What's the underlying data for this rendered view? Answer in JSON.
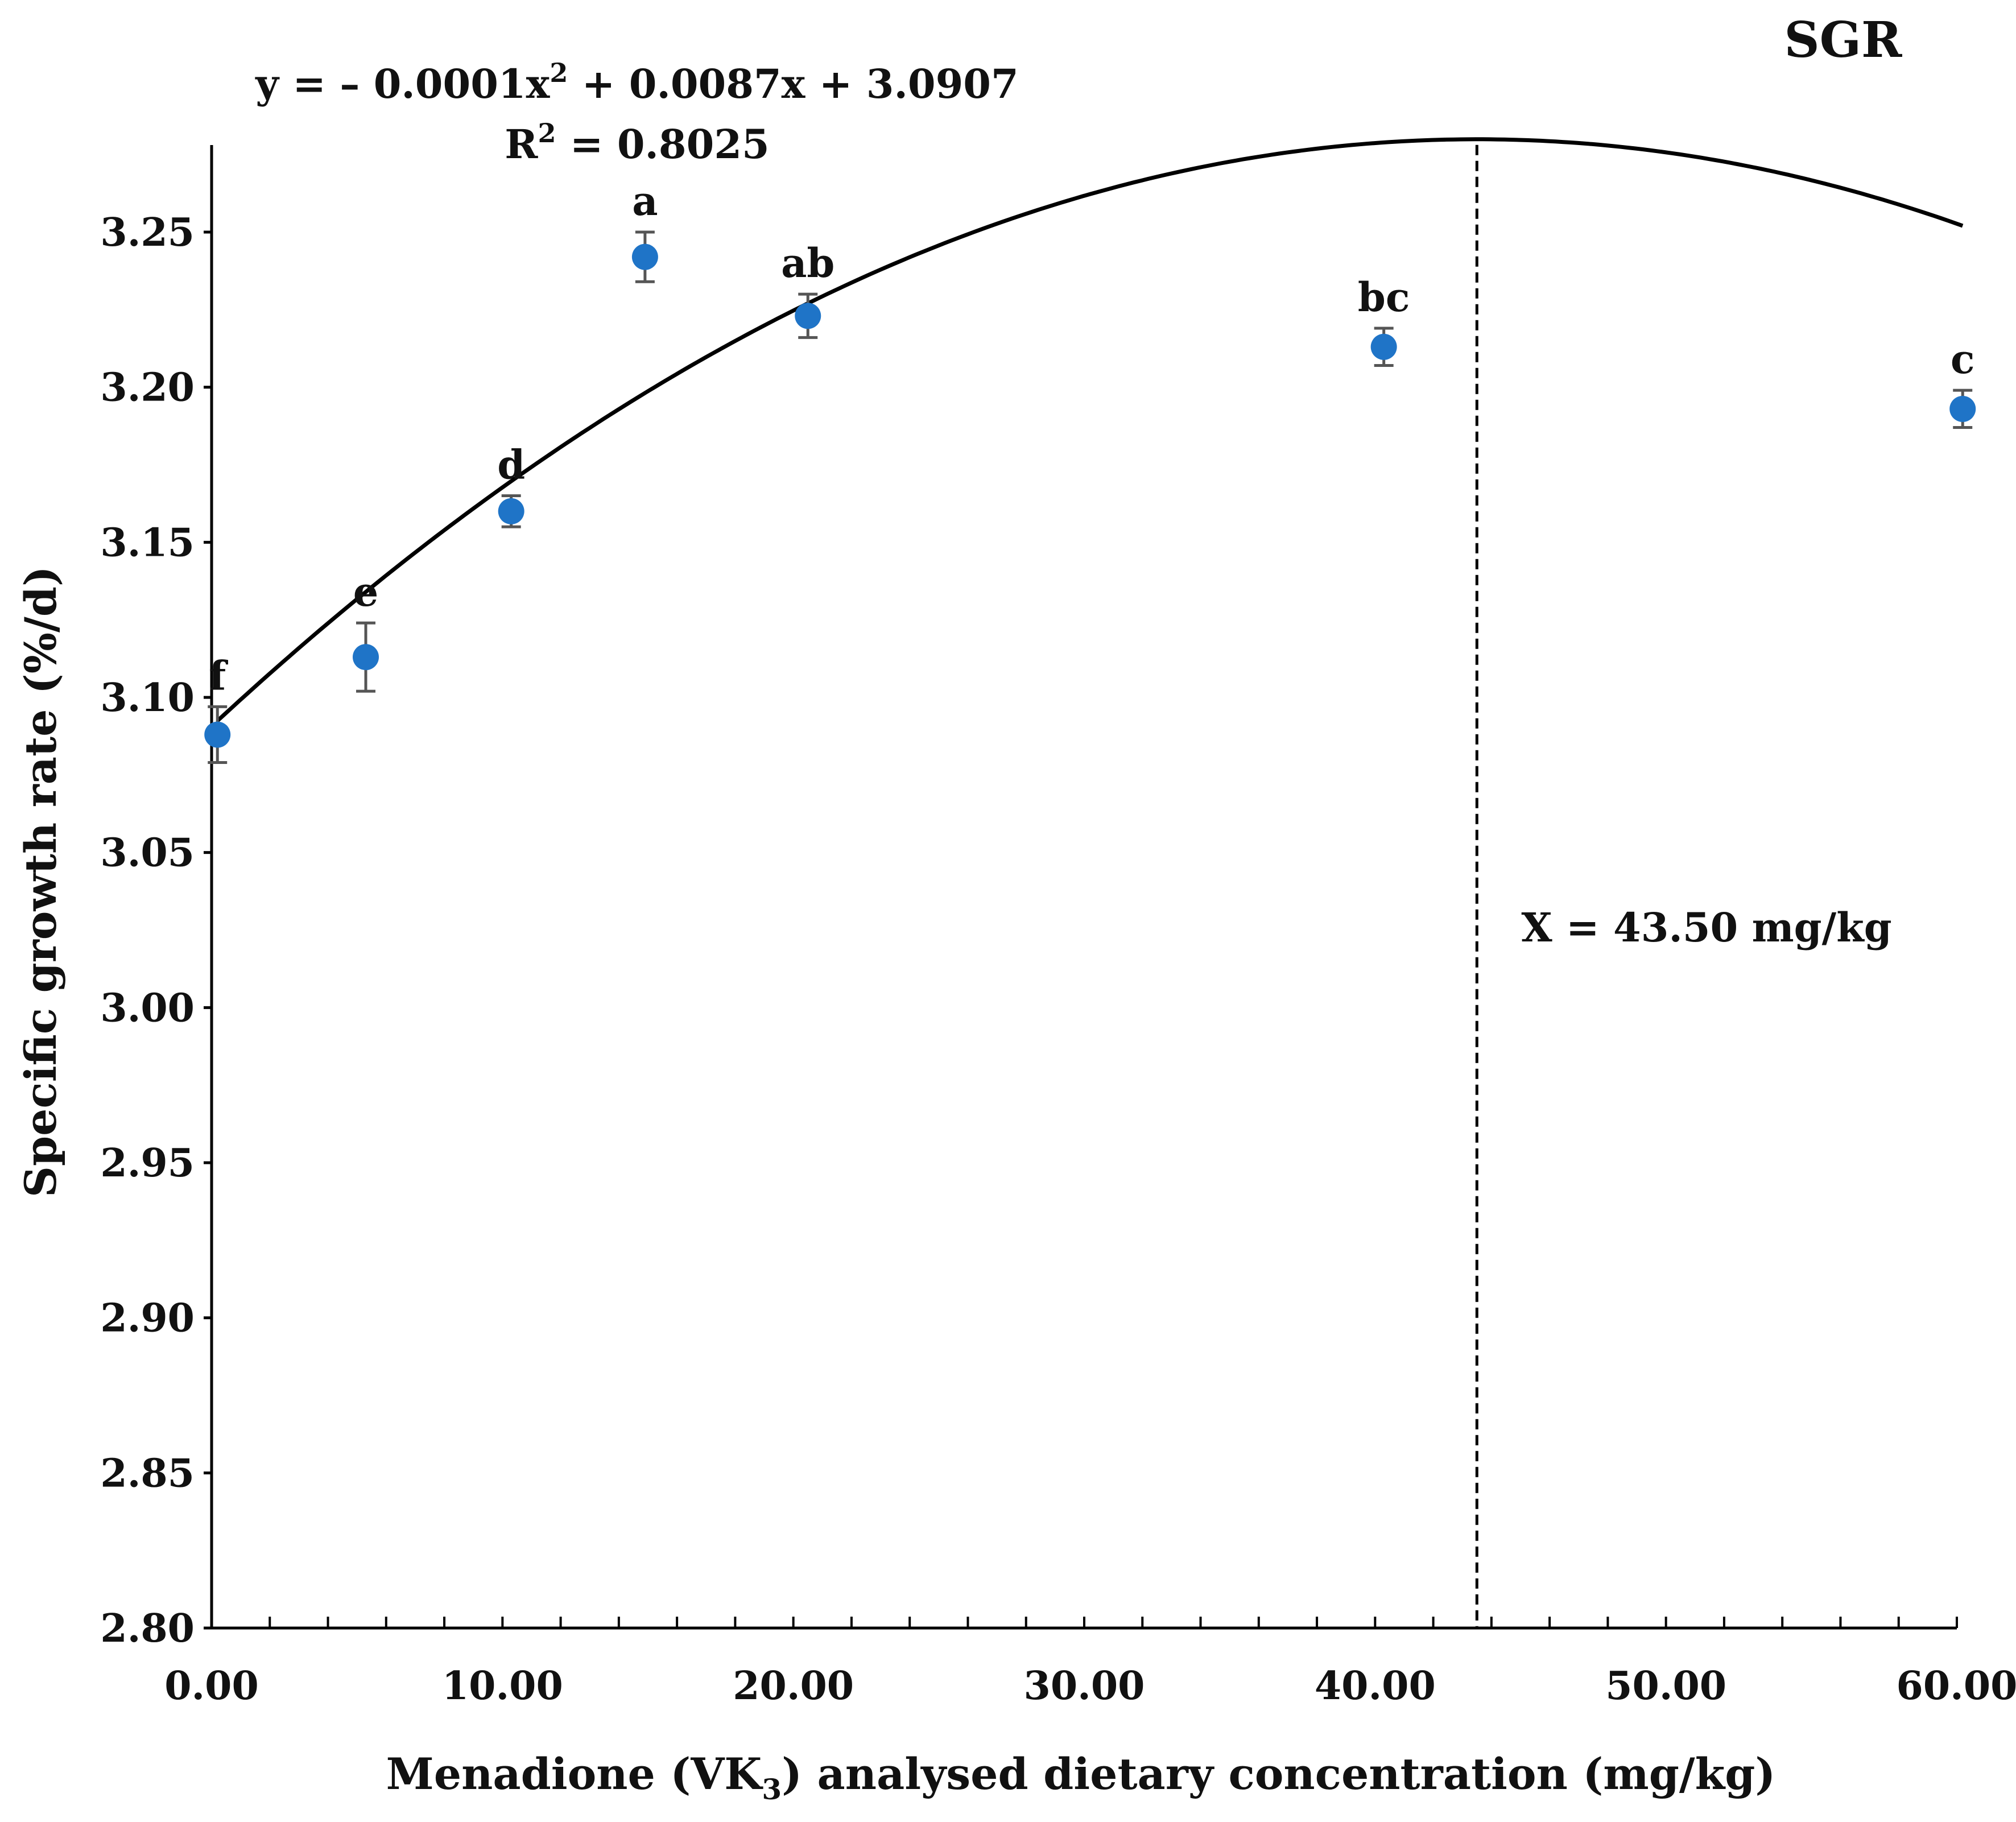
{
  "chart_data": {
    "type": "scatter",
    "panel_title": "SGR",
    "xlabel": "Menadione (VK3) analysed dietary concentration (mg/kg)",
    "xlabel_parts": {
      "pre": "Menadione (VK",
      "sub": "3",
      "post": ") analysed dietary concentration (mg/kg)"
    },
    "ylabel": "Specific growth rate (%/d)",
    "xlim": [
      0,
      60
    ],
    "ylim": [
      2.8,
      3.28
    ],
    "x_ticks": [
      "0.00",
      "10.00",
      "20.00",
      "30.00",
      "40.00",
      "50.00",
      "60.00"
    ],
    "x_tick_values": [
      0,
      10,
      20,
      30,
      40,
      50,
      60
    ],
    "x_minor_step": 2,
    "y_ticks": [
      "2.80",
      "2.85",
      "2.90",
      "2.95",
      "3.00",
      "3.05",
      "3.10",
      "3.15",
      "3.20",
      "3.25"
    ],
    "y_tick_values": [
      2.8,
      2.85,
      2.9,
      2.95,
      3.0,
      3.05,
      3.1,
      3.15,
      3.2,
      3.25
    ],
    "series": [
      {
        "name": "SGR",
        "color": "#1f74c7",
        "errorbar_color": "#555555",
        "points": [
          {
            "x": 0.2,
            "y": 3.088,
            "err": 0.009,
            "label": "f"
          },
          {
            "x": 5.3,
            "y": 3.113,
            "err": 0.011,
            "label": "e"
          },
          {
            "x": 10.3,
            "y": 3.16,
            "err": 0.005,
            "label": "d"
          },
          {
            "x": 14.9,
            "y": 3.242,
            "err": 0.008,
            "label": "a"
          },
          {
            "x": 20.5,
            "y": 3.223,
            "err": 0.007,
            "label": "ab"
          },
          {
            "x": 40.3,
            "y": 3.213,
            "err": 0.006,
            "label": "bc"
          },
          {
            "x": 60.2,
            "y": 3.193,
            "err": 0.006,
            "label": "c"
          }
        ]
      }
    ],
    "fit": {
      "type": "quadratic",
      "coefficients": {
        "a": -0.0001,
        "b": 0.0087,
        "c": 3.0907
      },
      "x_range": [
        0.2,
        60.2
      ],
      "equation_parts": {
        "pre": "y = – 0.0001x",
        "sup": "2",
        "post": " + 0.0087x + 3.0907"
      },
      "r2_parts": {
        "pre": "R",
        "sup": "2",
        "post": " = 0.8025"
      }
    },
    "breakpoint": {
      "x": 43.5,
      "label": "X = 43.50 mg/kg"
    }
  }
}
